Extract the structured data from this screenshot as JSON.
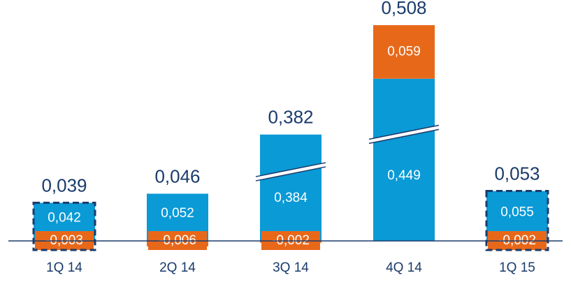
{
  "chart_data": {
    "type": "stacked_bar",
    "categories": [
      "1Q 14",
      "2Q 14",
      "3Q 14",
      "4Q 14",
      "1Q 15"
    ],
    "series": [
      {
        "color": "#0a9ad6",
        "values": [
          0.042,
          0.052,
          0.384,
          0.449,
          0.055
        ],
        "value_labels": [
          "0,042",
          "0,052",
          "0,384",
          "0,449",
          "0,055"
        ]
      },
      {
        "color": "#e8681a",
        "values": [
          -0.003,
          -0.006,
          -0.002,
          0.059,
          -0.002
        ],
        "value_labels": [
          "-0,003",
          "-0,006",
          "-0,002",
          "0,059",
          "-0,002"
        ]
      }
    ],
    "totals": {
      "values": [
        0.039,
        0.046,
        0.382,
        0.508,
        0.053
      ],
      "value_labels": [
        "0,039",
        "0,046",
        "0,382",
        "0,508",
        "0,053"
      ]
    },
    "axis_break": [
      false,
      false,
      true,
      true,
      false
    ],
    "highlighted": [
      true,
      false,
      false,
      false,
      true
    ]
  }
}
